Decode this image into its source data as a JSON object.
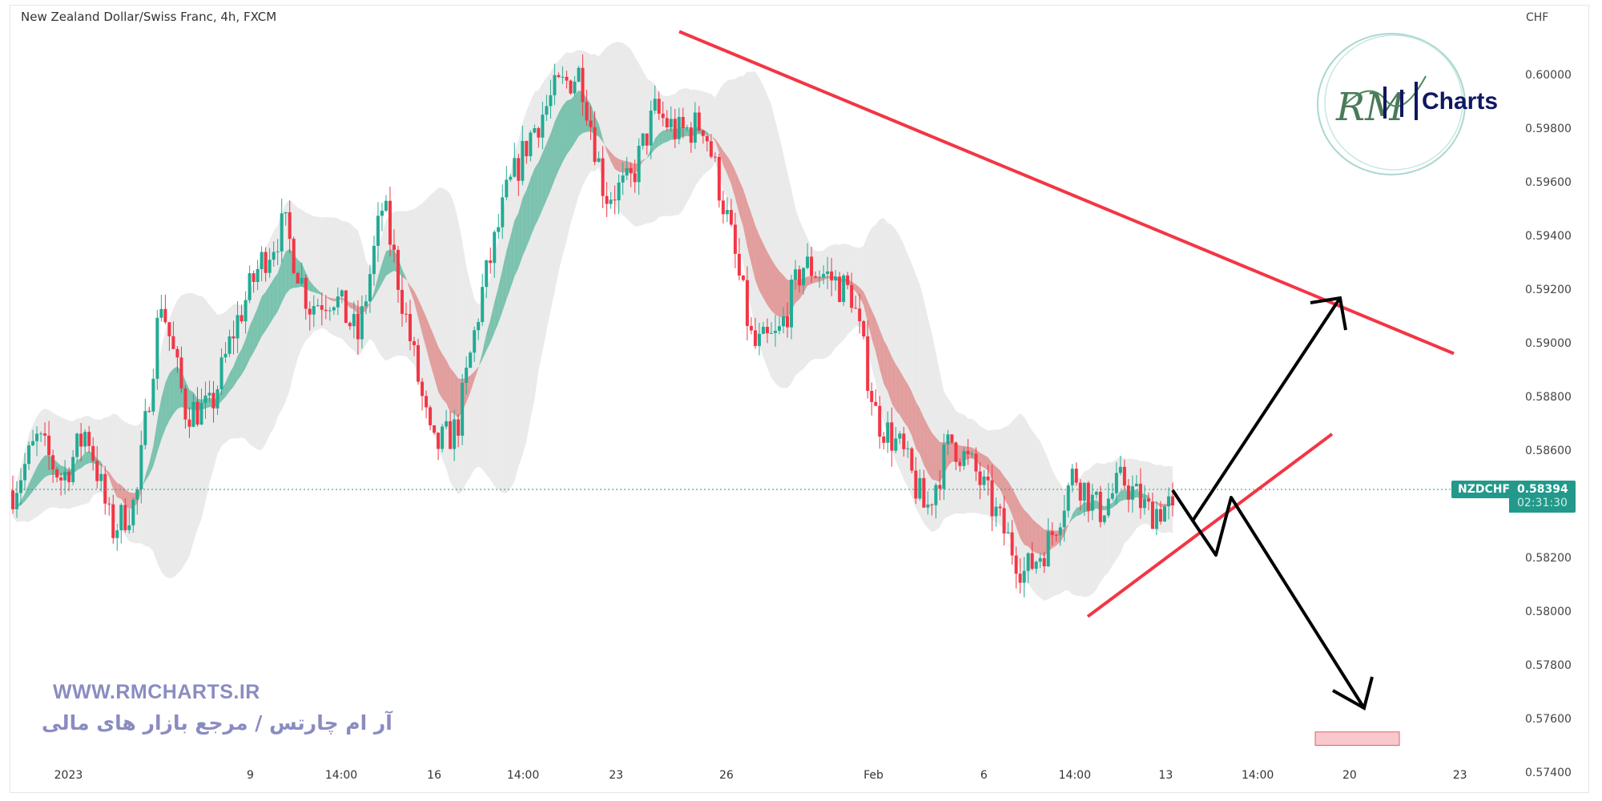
{
  "header": {
    "title": "New Zealand Dollar/Swiss Franc, 4h, FXCM"
  },
  "price_label": {
    "symbol": "NZDCHF",
    "price": "0.58394",
    "countdown": "02:31:30",
    "color": "#22998a"
  },
  "logo": {
    "text": "Charts",
    "monogram": "RM"
  },
  "watermark": {
    "url": "WWW.RMCHARTS.IR",
    "tagline": "آر ام چارتس / مرجع بازار های مالی"
  },
  "chart_data": {
    "type": "candlestick",
    "title": "New Zealand Dollar/Swiss Franc, 4h, FXCM",
    "ylabel": "CHF",
    "ylim": [
      0.5732,
      0.6024
    ],
    "y_ticks": [
      "0.60000",
      "0.59800",
      "0.59600",
      "0.59400",
      "0.59200",
      "0.59000",
      "0.58800",
      "0.58600",
      "0.58200",
      "0.58000",
      "0.57800",
      "0.57600",
      "0.57400"
    ],
    "x_ticks": [
      "2023",
      "9",
      "14:00",
      "16",
      "14:00",
      "23",
      "26",
      "Feb",
      "6",
      "14:00",
      "13",
      "14:00",
      "20",
      "23"
    ],
    "up_color": "#22ab94",
    "down_color": "#f23645",
    "approx_close_path": [
      0.5845,
      0.5864,
      0.5849,
      0.5868,
      0.583,
      0.5841,
      0.5917,
      0.5875,
      0.5875,
      0.5906,
      0.5929,
      0.5944,
      0.5914,
      0.5918,
      0.5902,
      0.5952,
      0.5906,
      0.586,
      0.5868,
      0.5918,
      0.5955,
      0.5978,
      0.5994,
      0.6001,
      0.5955,
      0.5959,
      0.5986,
      0.5978,
      0.5982,
      0.5944,
      0.5898,
      0.5902,
      0.5929,
      0.5925,
      0.5918,
      0.5872,
      0.586,
      0.5837,
      0.5864,
      0.5852,
      0.5833,
      0.5814,
      0.5826,
      0.5852,
      0.5837,
      0.5849,
      0.5837,
      0.58394
    ],
    "last_price": 0.58394,
    "annotations": {
      "downtrend_line": {
        "from_price": 0.6016,
        "to_price": 0.5896,
        "color": "#f23645"
      },
      "support_line": {
        "from_price": 0.5798,
        "to_price": 0.5866,
        "color": "#f23645"
      },
      "target_zone": {
        "low": 0.575,
        "high": 0.5755,
        "color": "#f8c8cc"
      },
      "scenario_arrows_color": "#000000"
    }
  }
}
